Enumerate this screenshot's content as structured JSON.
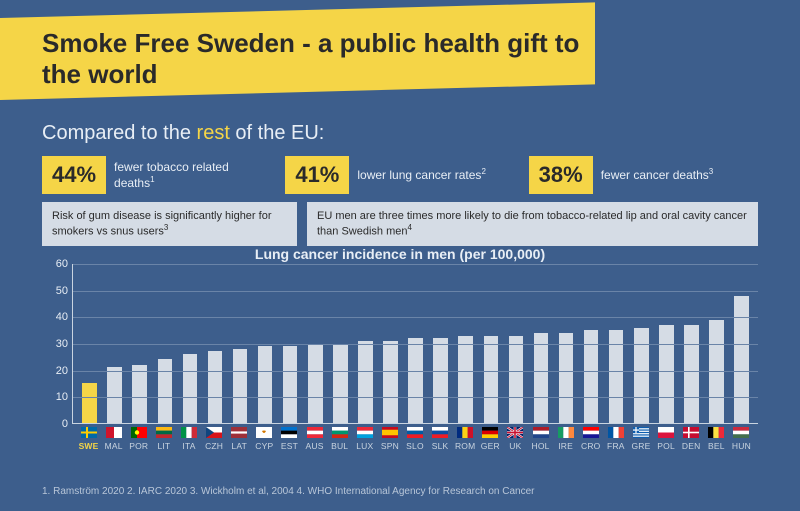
{
  "title": "Smoke Free Sweden - a public health gift to the world",
  "subhead_prefix": "Compared to the ",
  "subhead_highlight": "rest",
  "subhead_suffix": " of the EU:",
  "stats": [
    {
      "pct": "44%",
      "label": "fewer tobacco related deaths",
      "sup": "1"
    },
    {
      "pct": "41%",
      "label": "lower lung cancer rates",
      "sup": "2"
    },
    {
      "pct": "38%",
      "label": "fewer cancer deaths",
      "sup": "3"
    }
  ],
  "info_boxes": [
    {
      "text": "Risk of gum disease is significantly higher for smokers vs snus users",
      "sup": "3"
    },
    {
      "text": "EU men are three times more likely to die from tobacco-related lip and oral cavity cancer than Swedish men",
      "sup": "4"
    }
  ],
  "chart": {
    "type": "bar",
    "title": "Lung cancer incidence in men (per 100,000)",
    "ylim_max": 60,
    "ytick_step": 10,
    "background_color": "#3d5e8c",
    "grid_color": "#6a84a8",
    "axis_color": "#c9d4e0",
    "bar_color": "#d5dce5",
    "highlight_bar_color": "#f5d547",
    "bar_width_ratio": 0.58,
    "tick_fontsize": 11,
    "label_fontsize": 8.5,
    "countries": [
      {
        "code": "SWE",
        "value": 15,
        "highlight": true,
        "flag_svg": "<rect width='16' height='11' fill='#006aa7'/><rect x='5' width='2' height='11' fill='#fecc00'/><rect y='4.5' width='16' height='2' fill='#fecc00'/>"
      },
      {
        "code": "MAL",
        "value": 21,
        "flag_svg": "<rect width='16' height='11' fill='#fff'/><rect width='8' height='11' fill='#cf142b'/>"
      },
      {
        "code": "POR",
        "value": 22,
        "flag_svg": "<rect width='16' height='11' fill='#f00'/><rect width='6' height='11' fill='#060'/><circle cx='6' cy='5.5' r='2.2' fill='#ff0'/>"
      },
      {
        "code": "LIT",
        "value": 24,
        "flag_svg": "<rect width='16' height='3.67' fill='#fdb913'/><rect y='3.67' width='16' height='3.67' fill='#006a44'/><rect y='7.33' width='16' height='3.67' fill='#c1272d'/>"
      },
      {
        "code": "ITA",
        "value": 26,
        "flag_svg": "<rect width='5.33' height='11' fill='#009246'/><rect x='5.33' width='5.33' height='11' fill='#fff'/><rect x='10.67' width='5.33' height='11' fill='#ce2b37'/>"
      },
      {
        "code": "CZH",
        "value": 27,
        "flag_svg": "<rect width='16' height='5.5' fill='#fff'/><rect y='5.5' width='16' height='5.5' fill='#d7141a'/><polygon points='0,0 8,5.5 0,11' fill='#11457e'/>"
      },
      {
        "code": "LAT",
        "value": 28,
        "flag_svg": "<rect width='16' height='11' fill='#9e3039'/><rect y='4.4' width='16' height='2.2' fill='#fff'/>"
      },
      {
        "code": "CYP",
        "value": 29,
        "flag_svg": "<rect width='16' height='11' fill='#fff'/><path d='M6 4 Q8 3 10 4 Q9 6 8 6 Q7 6 6 4' fill='#d57800'/>"
      },
      {
        "code": "EST",
        "value": 29,
        "flag_svg": "<rect width='16' height='3.67' fill='#0072ce'/><rect y='3.67' width='16' height='3.67' fill='#000'/><rect y='7.33' width='16' height='3.67' fill='#fff'/>"
      },
      {
        "code": "AUS",
        "value": 30,
        "flag_svg": "<rect width='16' height='3.67' fill='#ed2939'/><rect y='3.67' width='16' height='3.67' fill='#fff'/><rect y='7.33' width='16' height='3.67' fill='#ed2939'/>"
      },
      {
        "code": "BUL",
        "value": 30,
        "flag_svg": "<rect width='16' height='3.67' fill='#fff'/><rect y='3.67' width='16' height='3.67' fill='#00966e'/><rect y='7.33' width='16' height='3.67' fill='#d62612'/>"
      },
      {
        "code": "LUX",
        "value": 31,
        "flag_svg": "<rect width='16' height='3.67' fill='#ed2939'/><rect y='3.67' width='16' height='3.67' fill='#fff'/><rect y='7.33' width='16' height='3.67' fill='#00a1de'/>"
      },
      {
        "code": "SPN",
        "value": 31,
        "flag_svg": "<rect width='16' height='11' fill='#c60b1e'/><rect y='2.75' width='16' height='5.5' fill='#ffc400'/>"
      },
      {
        "code": "SLO",
        "value": 32,
        "flag_svg": "<rect width='16' height='3.67' fill='#fff'/><rect y='3.67' width='16' height='3.67' fill='#005da4'/><rect y='7.33' width='16' height='3.67' fill='#ed1c24'/>"
      },
      {
        "code": "SLK",
        "value": 32,
        "flag_svg": "<rect width='16' height='3.67' fill='#fff'/><rect y='3.67' width='16' height='3.67' fill='#0b4ea2'/><rect y='7.33' width='16' height='3.67' fill='#ee1c25'/>"
      },
      {
        "code": "ROM",
        "value": 33,
        "flag_svg": "<rect width='5.33' height='11' fill='#002b7f'/><rect x='5.33' width='5.33' height='11' fill='#fcd116'/><rect x='10.67' width='5.33' height='11' fill='#ce1126'/>"
      },
      {
        "code": "GER",
        "value": 33,
        "flag_svg": "<rect width='16' height='3.67' fill='#000'/><rect y='3.67' width='16' height='3.67' fill='#d00'/><rect y='7.33' width='16' height='3.67' fill='#ffce00'/>"
      },
      {
        "code": "UK",
        "value": 33,
        "flag_svg": "<rect width='16' height='11' fill='#012169'/><path d='M0 0 L16 11 M16 0 L0 11' stroke='#fff' stroke-width='2.2'/><path d='M0 0 L16 11 M16 0 L0 11' stroke='#c8102e' stroke-width='1'/><rect x='6.7' width='2.6' height='11' fill='#fff'/><rect y='4.2' width='16' height='2.6' fill='#fff'/><rect x='7.2' width='1.6' height='11' fill='#c8102e'/><rect y='4.7' width='16' height='1.6' fill='#c8102e'/>"
      },
      {
        "code": "HOL",
        "value": 34,
        "flag_svg": "<rect width='16' height='3.67' fill='#ae1c28'/><rect y='3.67' width='16' height='3.67' fill='#fff'/><rect y='7.33' width='16' height='3.67' fill='#21468b'/>"
      },
      {
        "code": "IRE",
        "value": 34,
        "flag_svg": "<rect width='5.33' height='11' fill='#169b62'/><rect x='5.33' width='5.33' height='11' fill='#fff'/><rect x='10.67' width='5.33' height='11' fill='#ff883e'/>"
      },
      {
        "code": "CRO",
        "value": 35,
        "flag_svg": "<rect width='16' height='3.67' fill='#ff0000'/><rect y='3.67' width='16' height='3.67' fill='#fff'/><rect y='7.33' width='16' height='3.67' fill='#171796'/>"
      },
      {
        "code": "FRA",
        "value": 35,
        "flag_svg": "<rect width='5.33' height='11' fill='#0055a4'/><rect x='5.33' width='5.33' height='11' fill='#fff'/><rect x='10.67' width='5.33' height='11' fill='#ef4135'/>"
      },
      {
        "code": "GRE",
        "value": 36,
        "flag_svg": "<rect width='16' height='11' fill='#0d5eaf'/><rect y='1.22' width='16' height='1.22' fill='#fff'/><rect y='3.67' width='16' height='1.22' fill='#fff'/><rect y='6.11' width='16' height='1.22' fill='#fff'/><rect y='8.56' width='16' height='1.22' fill='#fff'/><rect width='6' height='6.11' fill='#0d5eaf'/><rect x='2.4' width='1.2' height='6.11' fill='#fff'/><rect y='2.45' width='6' height='1.22' fill='#fff'/>"
      },
      {
        "code": "POL",
        "value": 37,
        "flag_svg": "<rect width='16' height='5.5' fill='#fff'/><rect y='5.5' width='16' height='5.5' fill='#dc143c'/>"
      },
      {
        "code": "DEN",
        "value": 37,
        "flag_svg": "<rect width='16' height='11' fill='#c60c30'/><rect x='5' width='1.6' height='11' fill='#fff'/><rect y='4.7' width='16' height='1.6' fill='#fff'/>"
      },
      {
        "code": "BEL",
        "value": 39,
        "flag_svg": "<rect width='5.33' height='11' fill='#000'/><rect x='5.33' width='5.33' height='11' fill='#fae042'/><rect x='10.67' width='5.33' height='11' fill='#ed2939'/>"
      },
      {
        "code": "HUN",
        "value": 48,
        "flag_svg": "<rect width='16' height='3.67' fill='#cd2a3e'/><rect y='3.67' width='16' height='3.67' fill='#fff'/><rect y='7.33' width='16' height='3.67' fill='#436f4d'/>"
      }
    ]
  },
  "footnotes": "1.  Ramström 2020    2. IARC 2020    3. Wickholm et al, 2004    4. WHO International Agency for Research on Cancer"
}
